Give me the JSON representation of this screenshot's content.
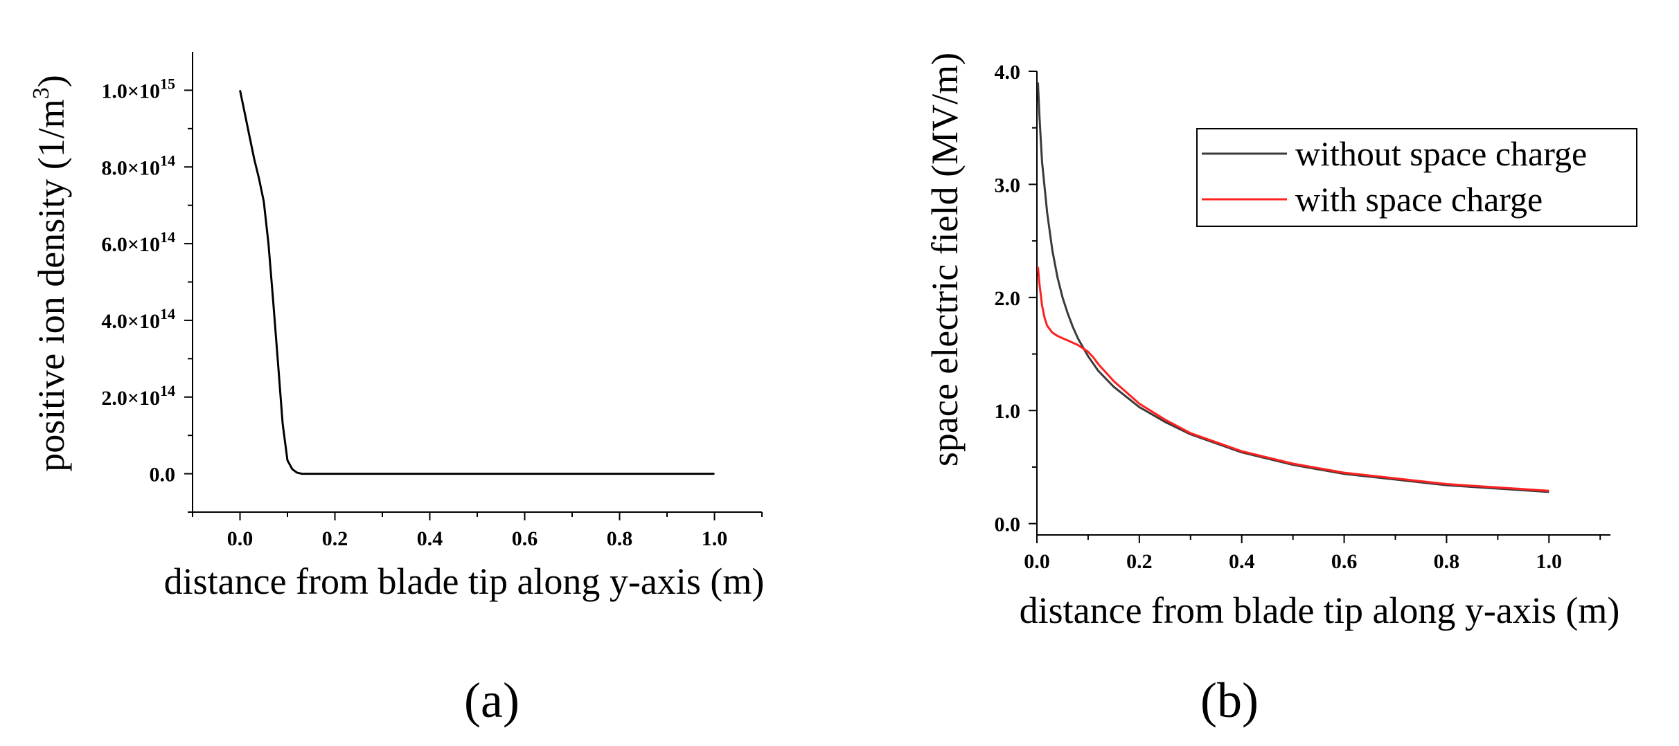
{
  "chart_data": [
    {
      "type": "line",
      "panel_label": "(a)",
      "xlabel": "distance from blade tip along y-axis (m)",
      "ylabel_main": "positive ion density (1/m",
      "ylabel_sup": "3",
      "ylabel_end": ")",
      "xlim": [
        -0.1,
        1.1
      ],
      "ylim": [
        -100000000000000.0,
        1100000000000000.0
      ],
      "xticks": [
        0.0,
        0.2,
        0.4,
        0.6,
        0.8,
        1.0
      ],
      "xtick_labels": [
        "0.0",
        "0.2",
        "0.4",
        "0.6",
        "0.8",
        "1.0"
      ],
      "yticks": [
        {
          "value": 0,
          "base": "0.0",
          "exp": ""
        },
        {
          "value": 200000000000000.0,
          "base": "2.0×10",
          "exp": "14"
        },
        {
          "value": 400000000000000.0,
          "base": "4.0×10",
          "exp": "14"
        },
        {
          "value": 600000000000000.0,
          "base": "6.0×10",
          "exp": "14"
        },
        {
          "value": 800000000000000.0,
          "base": "8.0×10",
          "exp": "14"
        },
        {
          "value": 1000000000000000.0,
          "base": "1.0×10",
          "exp": "15"
        }
      ],
      "series": [
        {
          "name": "positive ion density",
          "color": "#000000",
          "x": [
            0.0,
            0.01,
            0.02,
            0.03,
            0.04,
            0.05,
            0.06,
            0.07,
            0.08,
            0.09,
            0.1,
            0.11,
            0.12,
            0.13,
            0.2,
            0.4,
            0.6,
            0.8,
            1.0
          ],
          "y": [
            1000000000000000.0,
            940000000000000.0,
            880000000000000.0,
            820000000000000.0,
            770000000000000.0,
            710000000000000.0,
            600000000000000.0,
            450000000000000.0,
            290000000000000.0,
            130000000000000.0,
            35000000000000.0,
            12000000000000.0,
            3000000000000.0,
            0,
            0,
            0,
            0,
            0,
            0
          ]
        }
      ]
    },
    {
      "type": "line",
      "panel_label": "(b)",
      "xlabel": "distance from blade tip along y-axis (m)",
      "ylabel": "space electric field (MV/m)",
      "xlim": [
        0.0,
        1.12
      ],
      "ylim": [
        -0.1,
        4.0
      ],
      "xticks": [
        0.0,
        0.2,
        0.4,
        0.6,
        0.8,
        1.0
      ],
      "xtick_labels": [
        "0.0",
        "0.2",
        "0.4",
        "0.6",
        "0.8",
        "1.0"
      ],
      "yticks": [
        0.0,
        1.0,
        2.0,
        3.0,
        4.0
      ],
      "ytick_labels": [
        "0.0",
        "1.0",
        "2.0",
        "3.0",
        "4.0"
      ],
      "legend_position": "top-right",
      "series": [
        {
          "name": "without space charge",
          "color": "#3a3a3a",
          "x": [
            0.002,
            0.005,
            0.01,
            0.02,
            0.03,
            0.04,
            0.05,
            0.06,
            0.07,
            0.08,
            0.09,
            0.1,
            0.12,
            0.15,
            0.2,
            0.25,
            0.3,
            0.4,
            0.5,
            0.6,
            0.7,
            0.8,
            0.9,
            1.0
          ],
          "y": [
            3.9,
            3.6,
            3.2,
            2.75,
            2.42,
            2.18,
            2.0,
            1.86,
            1.74,
            1.64,
            1.56,
            1.48,
            1.35,
            1.21,
            1.03,
            0.9,
            0.79,
            0.63,
            0.52,
            0.44,
            0.39,
            0.34,
            0.31,
            0.28
          ]
        },
        {
          "name": "with space charge",
          "color": "#ff2020",
          "x": [
            0.002,
            0.005,
            0.01,
            0.015,
            0.02,
            0.03,
            0.04,
            0.05,
            0.06,
            0.07,
            0.08,
            0.09,
            0.1,
            0.11,
            0.12,
            0.15,
            0.2,
            0.25,
            0.3,
            0.4,
            0.5,
            0.6,
            0.7,
            0.8,
            0.9,
            1.0
          ],
          "y": [
            2.27,
            2.12,
            1.93,
            1.82,
            1.75,
            1.69,
            1.66,
            1.64,
            1.62,
            1.6,
            1.58,
            1.55,
            1.52,
            1.47,
            1.41,
            1.26,
            1.06,
            0.92,
            0.8,
            0.64,
            0.53,
            0.45,
            0.4,
            0.35,
            0.32,
            0.29
          ]
        }
      ]
    }
  ]
}
